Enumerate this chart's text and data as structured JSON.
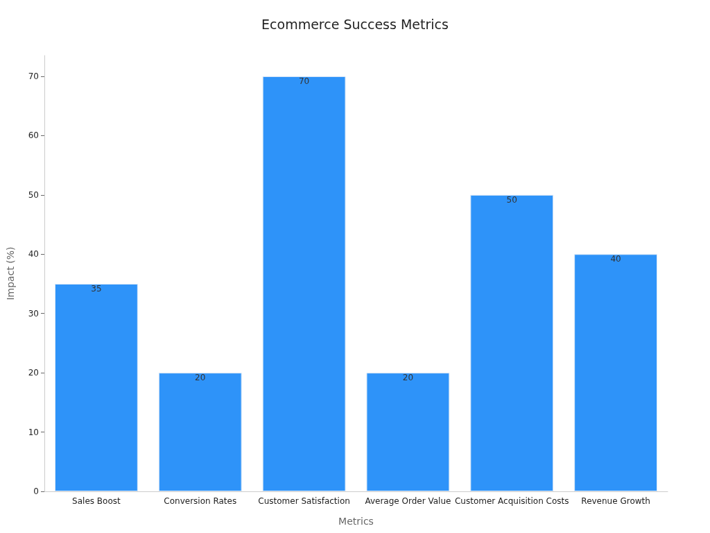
{
  "chart_data": {
    "type": "bar",
    "title": "Ecommerce Success Metrics",
    "xlabel": "Metrics",
    "ylabel": "Impact (%)",
    "categories": [
      "Sales Boost",
      "Conversion Rates",
      "Customer Satisfaction",
      "Average Order Value",
      "Customer Acquisition Costs",
      "Revenue Growth"
    ],
    "values": [
      35,
      20,
      70,
      20,
      50,
      40
    ],
    "color": "#2e93f9",
    "ylim": [
      0,
      73.5
    ],
    "yticks": [
      0,
      10,
      20,
      30,
      40,
      50,
      60,
      70
    ],
    "data_labels": true,
    "grid": false
  }
}
